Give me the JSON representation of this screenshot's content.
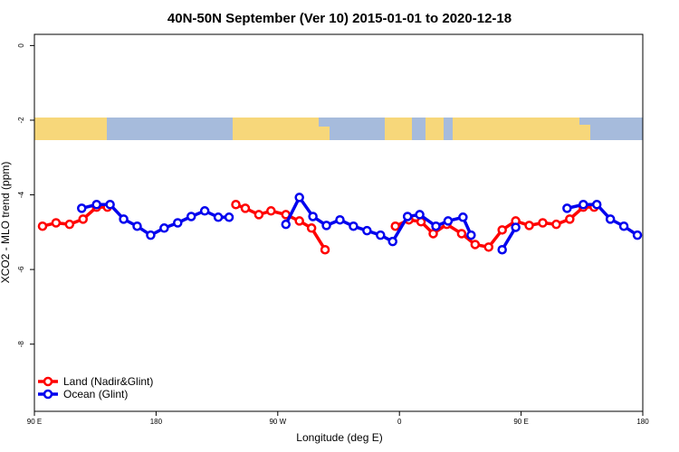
{
  "chart_data": {
    "type": "line",
    "title": "40N-50N September (Ver 10)   2015-01-01 to 2020-12-18",
    "x_label": "Longitude (deg E)",
    "y_label": "XCO2 - MLO trend (ppm)",
    "xlim": [
      90,
      540
    ],
    "ylim": [
      -9.8,
      0.3
    ],
    "xticks": [
      {
        "value": 90,
        "label": "90 E"
      },
      180,
      {
        "value": 270,
        "label": "90 W"
      },
      {
        "value": 360,
        "label": "0"
      },
      {
        "value": 450,
        "label": "90 E"
      },
      {
        "value": 540,
        "label": "180"
      }
    ],
    "yticks": [
      0,
      -2,
      -4,
      -6,
      -8
    ],
    "legend": "bottom-left",
    "series": [
      {
        "name": "Land (Nadir&Glint)",
        "color": "#ff0000",
        "x": [
          96,
          106,
          116,
          126,
          136,
          144,
          null,
          239,
          246,
          256,
          265,
          276,
          286,
          295,
          305,
          null,
          357,
          367,
          376,
          385,
          395,
          406,
          416,
          426,
          436,
          446,
          456,
          466,
          476,
          486,
          496,
          504
        ],
        "values": [
          -4.84,
          -4.75,
          -4.79,
          -4.65,
          -4.33,
          -4.33,
          null,
          -4.26,
          -4.36,
          -4.53,
          -4.43,
          -4.53,
          -4.7,
          -4.89,
          -5.47,
          null,
          -4.84,
          -4.67,
          -4.72,
          -5.04,
          -4.79,
          -5.04,
          -5.33,
          -5.4,
          -4.94,
          -4.7,
          -4.82,
          -4.75,
          -4.79,
          -4.65,
          -4.33,
          -4.33
        ]
      },
      {
        "name": "Ocean (Glint)",
        "color": "#0000ee",
        "x": [
          125,
          136,
          146,
          156,
          166,
          176,
          186,
          196,
          206,
          216,
          226,
          234,
          null,
          276,
          286,
          296,
          306,
          316,
          326,
          336,
          346,
          355,
          366,
          375,
          387,
          396,
          407,
          413,
          null,
          436,
          446,
          null,
          484,
          496,
          506,
          516,
          526,
          536
        ],
        "values": [
          -4.36,
          -4.26,
          -4.26,
          -4.65,
          -4.84,
          -5.08,
          -4.89,
          -4.75,
          -4.58,
          -4.43,
          -4.6,
          -4.6,
          null,
          -4.79,
          -4.07,
          -4.58,
          -4.82,
          -4.67,
          -4.84,
          -4.96,
          -5.08,
          -5.25,
          -4.58,
          -4.53,
          -4.84,
          -4.7,
          -4.6,
          -5.08,
          null,
          -5.47,
          -4.87,
          null,
          -4.36,
          -4.26,
          -4.26,
          -4.65,
          -4.84,
          -5.08
        ]
      }
    ]
  }
}
